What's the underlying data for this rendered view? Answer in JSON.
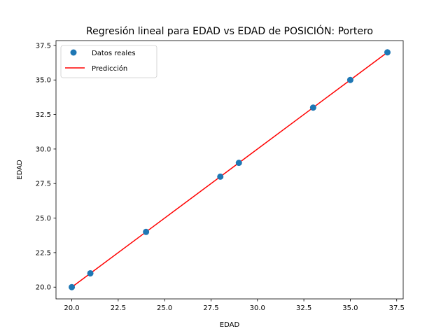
{
  "chart_data": {
    "type": "scatter",
    "title": "Regresión lineal para EDAD vs EDAD de POSICIÓN: Portero",
    "xlabel": "EDAD",
    "ylabel": "EDAD",
    "xlim": [
      19.15,
      37.85
    ],
    "ylim": [
      19.15,
      37.85
    ],
    "xticks": [
      20.0,
      22.5,
      25.0,
      27.5,
      30.0,
      32.5,
      35.0,
      37.5
    ],
    "yticks": [
      20.0,
      22.5,
      25.0,
      27.5,
      30.0,
      32.5,
      35.0,
      37.5
    ],
    "xtick_labels": [
      "20.0",
      "22.5",
      "25.0",
      "27.5",
      "30.0",
      "32.5",
      "35.0",
      "37.5"
    ],
    "ytick_labels": [
      "20.0",
      "22.5",
      "25.0",
      "27.5",
      "30.0",
      "32.5",
      "35.0",
      "37.5"
    ],
    "grid": false,
    "legend_position": "top-left",
    "series": [
      {
        "name": "Datos reales",
        "kind": "scatter",
        "color": "#1f77b4",
        "x": [
          20,
          21,
          24,
          28,
          29,
          33,
          35,
          37
        ],
        "y": [
          20,
          21,
          24,
          28,
          29,
          33,
          35,
          37
        ]
      },
      {
        "name": "Predicción",
        "kind": "line",
        "color": "#ff0000",
        "x": [
          20,
          21,
          24,
          28,
          29,
          33,
          35,
          37
        ],
        "y": [
          20,
          21,
          24,
          28,
          29,
          33,
          35,
          37
        ]
      }
    ]
  }
}
